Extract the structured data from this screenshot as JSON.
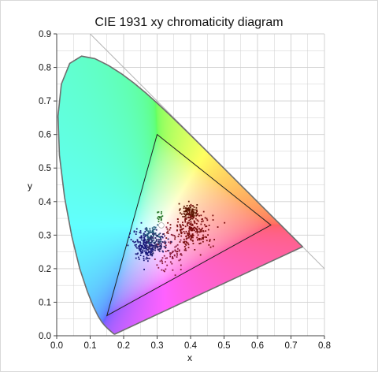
{
  "chart_data": {
    "type": "scatter",
    "title": "CIE 1931 xy chromaticity diagram",
    "xlabel": "x",
    "ylabel": "y",
    "xlim": [
      0.0,
      0.8
    ],
    "ylim": [
      0.0,
      0.9
    ],
    "x_ticks": [
      "0.0",
      "0.1",
      "0.2",
      "0.3",
      "0.4",
      "0.5",
      "0.6",
      "0.7",
      "0.8"
    ],
    "y_ticks": [
      "0.0",
      "0.1",
      "0.2",
      "0.3",
      "0.4",
      "0.5",
      "0.6",
      "0.7",
      "0.8",
      "0.9"
    ],
    "grid": true,
    "spectral_locus": [
      [
        0.1741,
        0.005
      ],
      [
        0.1738,
        0.0049
      ],
      [
        0.1736,
        0.0049
      ],
      [
        0.173,
        0.0048
      ],
      [
        0.1721,
        0.0048
      ],
      [
        0.1703,
        0.0058
      ],
      [
        0.1666,
        0.0089
      ],
      [
        0.1611,
        0.0138
      ],
      [
        0.1566,
        0.0177
      ],
      [
        0.151,
        0.0227
      ],
      [
        0.144,
        0.0297
      ],
      [
        0.1355,
        0.0399
      ],
      [
        0.1241,
        0.0578
      ],
      [
        0.1096,
        0.0868
      ],
      [
        0.0913,
        0.1327
      ],
      [
        0.0687,
        0.2007
      ],
      [
        0.0454,
        0.295
      ],
      [
        0.0235,
        0.4127
      ],
      [
        0.0082,
        0.5384
      ],
      [
        0.0039,
        0.6548
      ],
      [
        0.0139,
        0.7502
      ],
      [
        0.0389,
        0.812
      ],
      [
        0.0743,
        0.8338
      ],
      [
        0.1142,
        0.8262
      ],
      [
        0.1547,
        0.8059
      ],
      [
        0.1929,
        0.7816
      ],
      [
        0.2296,
        0.7543
      ],
      [
        0.2658,
        0.7243
      ],
      [
        0.3016,
        0.6923
      ],
      [
        0.3373,
        0.6589
      ],
      [
        0.3731,
        0.6245
      ],
      [
        0.4087,
        0.5896
      ],
      [
        0.4441,
        0.5547
      ],
      [
        0.4788,
        0.5202
      ],
      [
        0.5125,
        0.4866
      ],
      [
        0.5448,
        0.4544
      ],
      [
        0.5752,
        0.4242
      ],
      [
        0.6029,
        0.3965
      ],
      [
        0.627,
        0.3725
      ],
      [
        0.6482,
        0.3514
      ],
      [
        0.6658,
        0.334
      ],
      [
        0.6801,
        0.3197
      ],
      [
        0.6915,
        0.3083
      ],
      [
        0.7006,
        0.2993
      ],
      [
        0.7079,
        0.292
      ],
      [
        0.714,
        0.2859
      ],
      [
        0.719,
        0.2809
      ],
      [
        0.723,
        0.277
      ],
      [
        0.726,
        0.274
      ],
      [
        0.7283,
        0.2717
      ],
      [
        0.73,
        0.27
      ],
      [
        0.7311,
        0.2689
      ],
      [
        0.732,
        0.268
      ],
      [
        0.7327,
        0.2673
      ],
      [
        0.7334,
        0.2666
      ],
      [
        0.734,
        0.266
      ],
      [
        0.7344,
        0.2656
      ],
      [
        0.7346,
        0.2654
      ],
      [
        0.7347,
        0.2653
      ]
    ],
    "gamut_triangle": [
      [
        0.64,
        0.33
      ],
      [
        0.3,
        0.6
      ],
      [
        0.15,
        0.06
      ]
    ],
    "white_point": [
      0.3127,
      0.329
    ],
    "reference_line": [
      [
        0.1,
        0.9
      ],
      [
        0.8,
        0.2
      ]
    ],
    "clusters": [
      {
        "color": "#5a1500",
        "center": [
          0.395,
          0.37
        ],
        "spread": [
          0.012,
          0.012
        ],
        "count": 90
      },
      {
        "color": "#7a0e0e",
        "center": [
          0.405,
          0.315
        ],
        "spread": [
          0.03,
          0.028
        ],
        "count": 230
      },
      {
        "color": "#8a1a3a",
        "center": [
          0.34,
          0.245
        ],
        "spread": [
          0.025,
          0.03
        ],
        "count": 70
      },
      {
        "color": "#1a1a7a",
        "center": [
          0.265,
          0.27
        ],
        "spread": [
          0.018,
          0.022
        ],
        "count": 190
      },
      {
        "color": "#1f5a78",
        "center": [
          0.285,
          0.3
        ],
        "spread": [
          0.012,
          0.012
        ],
        "count": 70
      },
      {
        "color": "#2f2a6a",
        "center": [
          0.3,
          0.275
        ],
        "spread": [
          0.015,
          0.018
        ],
        "count": 90
      },
      {
        "color": "#2e7a2e",
        "center": [
          0.308,
          0.355
        ],
        "spread": [
          0.006,
          0.008
        ],
        "count": 18
      }
    ],
    "colors": {
      "locus_stroke": "#6e6e6e",
      "triangle_stroke": "#222222",
      "grid": "#cfcfcf",
      "reference_line": "#b5b5b5",
      "white_point": "#ffffff"
    }
  }
}
